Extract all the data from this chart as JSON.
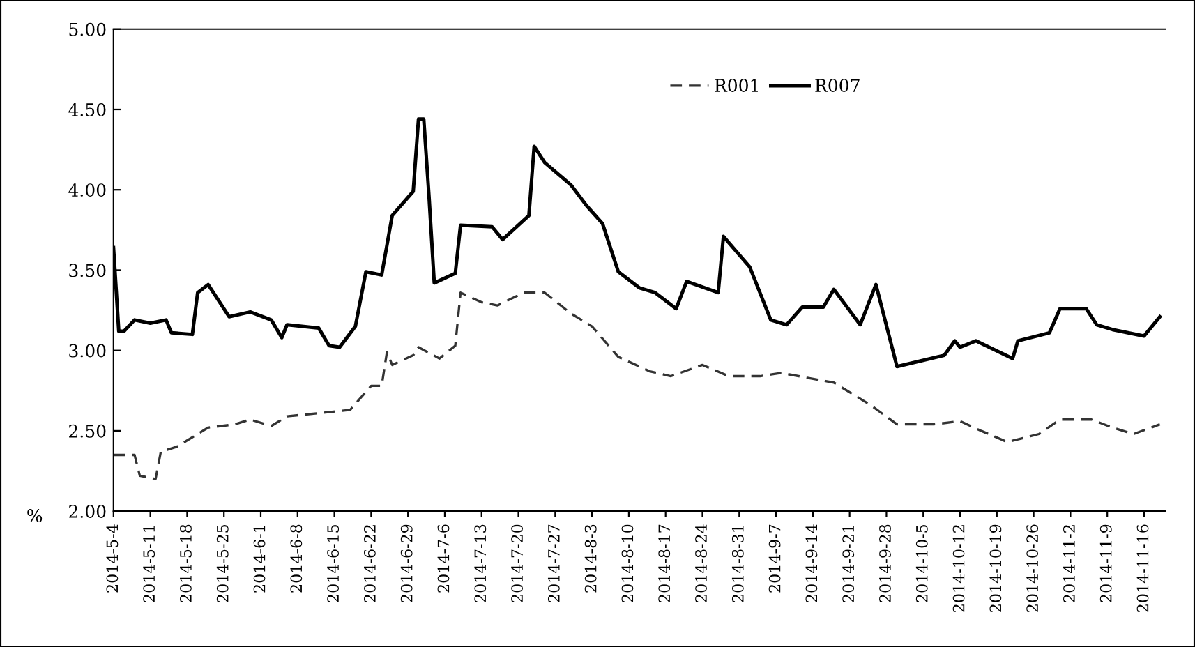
{
  "chart_data": {
    "type": "line",
    "ylabel": "%",
    "legend": "top",
    "grid": false,
    "marker": "none",
    "ylim": [
      2.0,
      5.0
    ],
    "yticks": [
      {
        "value": 2.0,
        "label": "2.00"
      },
      {
        "value": 2.5,
        "label": "2.50"
      },
      {
        "value": 3.0,
        "label": "3.00"
      },
      {
        "value": 3.5,
        "label": "3.50"
      },
      {
        "value": 4.0,
        "label": "4.00"
      },
      {
        "value": 4.5,
        "label": "4.50"
      },
      {
        "value": 5.0,
        "label": "5.00"
      }
    ],
    "xlim": [
      "2014-05-04",
      "2014-11-20"
    ],
    "xticks": [
      {
        "value": "2014-05-04",
        "label": "2014-5-4"
      },
      {
        "value": "2014-05-11",
        "label": "2014-5-11"
      },
      {
        "value": "2014-05-18",
        "label": "2014-5-18"
      },
      {
        "value": "2014-05-25",
        "label": "2014-5-25"
      },
      {
        "value": "2014-06-01",
        "label": "2014-6-1"
      },
      {
        "value": "2014-06-08",
        "label": "2014-6-8"
      },
      {
        "value": "2014-06-15",
        "label": "2014-6-15"
      },
      {
        "value": "2014-06-22",
        "label": "2014-6-22"
      },
      {
        "value": "2014-06-29",
        "label": "2014-6-29"
      },
      {
        "value": "2014-07-06",
        "label": "2014-7-6"
      },
      {
        "value": "2014-07-13",
        "label": "2014-7-13"
      },
      {
        "value": "2014-07-20",
        "label": "2014-7-20"
      },
      {
        "value": "2014-07-27",
        "label": "2014-7-27"
      },
      {
        "value": "2014-08-03",
        "label": "2014-8-3"
      },
      {
        "value": "2014-08-10",
        "label": "2014-8-10"
      },
      {
        "value": "2014-08-17",
        "label": "2014-8-17"
      },
      {
        "value": "2014-08-24",
        "label": "2014-8-24"
      },
      {
        "value": "2014-08-31",
        "label": "2014-8-31"
      },
      {
        "value": "2014-09-07",
        "label": "2014-9-7"
      },
      {
        "value": "2014-09-14",
        "label": "2014-9-14"
      },
      {
        "value": "2014-09-21",
        "label": "2014-9-21"
      },
      {
        "value": "2014-09-28",
        "label": "2014-9-28"
      },
      {
        "value": "2014-10-05",
        "label": "2014-10-5"
      },
      {
        "value": "2014-10-12",
        "label": "2014-10-12"
      },
      {
        "value": "2014-10-19",
        "label": "2014-10-19"
      },
      {
        "value": "2014-10-26",
        "label": "2014-10-26"
      },
      {
        "value": "2014-11-02",
        "label": "2014-11-2"
      },
      {
        "value": "2014-11-09",
        "label": "2014-11-9"
      },
      {
        "value": "2014-11-16",
        "label": "2014-11-16"
      }
    ],
    "series": [
      {
        "name": "R001",
        "color": "#333333",
        "line_style": "dashed",
        "x": [
          "2014-05-04",
          "2014-05-08",
          "2014-05-09",
          "2014-05-12",
          "2014-05-13",
          "2014-05-16",
          "2014-05-22",
          "2014-05-27",
          "2014-05-30",
          "2014-06-03",
          "2014-06-06",
          "2014-06-18",
          "2014-06-22",
          "2014-06-24",
          "2014-06-25",
          "2014-06-26",
          "2014-06-30",
          "2014-07-01",
          "2014-07-05",
          "2014-07-08",
          "2014-07-09",
          "2014-07-13",
          "2014-07-16",
          "2014-07-21",
          "2014-07-25",
          "2014-07-30",
          "2014-08-03",
          "2014-08-08",
          "2014-08-14",
          "2014-08-18",
          "2014-08-24",
          "2014-08-29",
          "2014-09-04",
          "2014-09-08",
          "2014-09-18",
          "2014-09-25",
          "2014-09-30",
          "2014-10-07",
          "2014-10-12",
          "2014-10-16",
          "2014-10-21",
          "2014-10-27",
          "2014-10-31",
          "2014-11-06",
          "2014-11-10",
          "2014-11-14",
          "2014-11-19"
        ],
        "values": [
          2.35,
          2.35,
          2.22,
          2.2,
          2.37,
          2.4,
          2.52,
          2.54,
          2.57,
          2.53,
          2.59,
          2.63,
          2.78,
          2.78,
          2.99,
          2.91,
          2.97,
          3.02,
          2.95,
          3.03,
          3.36,
          3.3,
          3.28,
          3.36,
          3.36,
          3.23,
          3.15,
          2.96,
          2.87,
          2.84,
          2.91,
          2.84,
          2.84,
          2.86,
          2.8,
          2.66,
          2.54,
          2.54,
          2.56,
          2.5,
          2.43,
          2.48,
          2.57,
          2.57,
          2.52,
          2.48,
          2.54
        ]
      },
      {
        "name": "R007",
        "color": "#000000",
        "line_style": "solid",
        "x": [
          "2014-05-04",
          "2014-05-05",
          "2014-05-06",
          "2014-05-08",
          "2014-05-11",
          "2014-05-14",
          "2014-05-15",
          "2014-05-19",
          "2014-05-20",
          "2014-05-22",
          "2014-05-26",
          "2014-05-30",
          "2014-06-03",
          "2014-06-05",
          "2014-06-06",
          "2014-06-12",
          "2014-06-14",
          "2014-06-16",
          "2014-06-19",
          "2014-06-21",
          "2014-06-24",
          "2014-06-26",
          "2014-06-30",
          "2014-07-01",
          "2014-07-02",
          "2014-07-03",
          "2014-07-04",
          "2014-07-08",
          "2014-07-09",
          "2014-07-15",
          "2014-07-17",
          "2014-07-22",
          "2014-07-23",
          "2014-07-25",
          "2014-07-30",
          "2014-08-02",
          "2014-08-05",
          "2014-08-08",
          "2014-08-12",
          "2014-08-15",
          "2014-08-19",
          "2014-08-21",
          "2014-08-27",
          "2014-08-28",
          "2014-09-02",
          "2014-09-06",
          "2014-09-09",
          "2014-09-12",
          "2014-09-16",
          "2014-09-18",
          "2014-09-23",
          "2014-09-26",
          "2014-09-30",
          "2014-10-09",
          "2014-10-11",
          "2014-10-12",
          "2014-10-15",
          "2014-10-22",
          "2014-10-23",
          "2014-10-29",
          "2014-10-31",
          "2014-11-05",
          "2014-11-07",
          "2014-11-10",
          "2014-11-16",
          "2014-11-19"
        ],
        "values": [
          3.64,
          3.12,
          3.12,
          3.19,
          3.17,
          3.19,
          3.11,
          3.1,
          3.36,
          3.41,
          3.21,
          3.24,
          3.19,
          3.08,
          3.16,
          3.14,
          3.03,
          3.02,
          3.15,
          3.49,
          3.47,
          3.84,
          3.99,
          4.44,
          4.44,
          3.96,
          3.42,
          3.48,
          3.78,
          3.77,
          3.69,
          3.84,
          4.27,
          4.17,
          4.03,
          3.9,
          3.79,
          3.49,
          3.39,
          3.36,
          3.26,
          3.43,
          3.36,
          3.71,
          3.52,
          3.19,
          3.16,
          3.27,
          3.27,
          3.38,
          3.16,
          3.41,
          2.9,
          2.97,
          3.06,
          3.02,
          3.06,
          2.95,
          3.06,
          3.11,
          3.26,
          3.26,
          3.16,
          3.13,
          3.09,
          3.21
        ]
      }
    ]
  }
}
